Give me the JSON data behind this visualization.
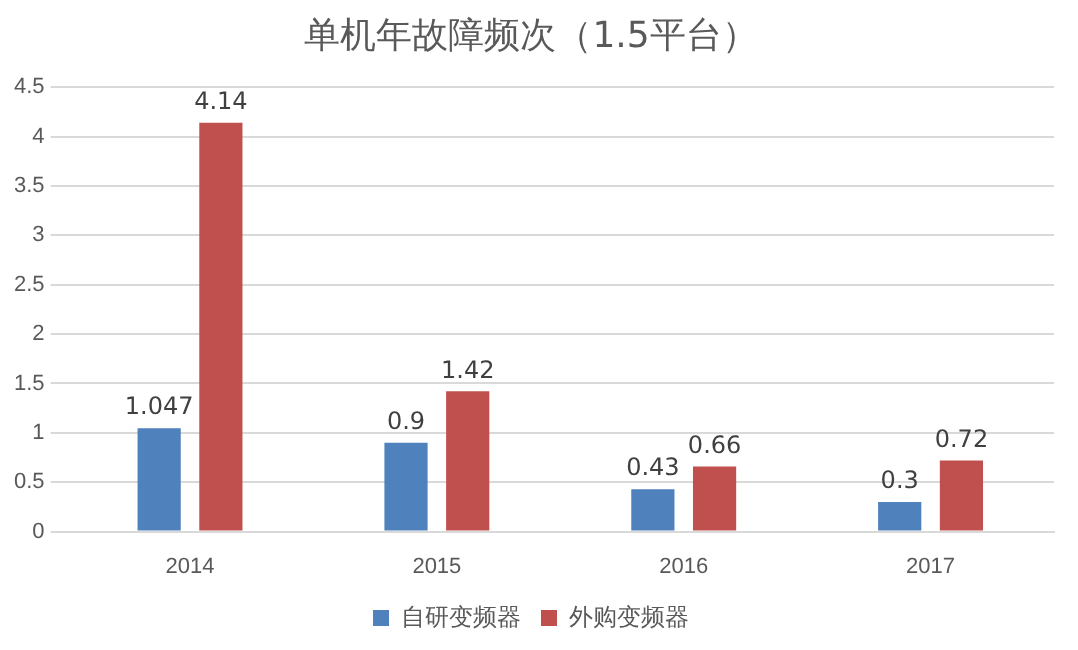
{
  "chart_data": {
    "type": "bar",
    "title": "单机年故障频次（1.5平台）",
    "categories": [
      "2014",
      "2015",
      "2016",
      "2017"
    ],
    "series": [
      {
        "name": "自研变频器",
        "color": "#4f81bd",
        "values": [
          1.047,
          0.9,
          0.43,
          0.3
        ]
      },
      {
        "name": "外购变频器",
        "color": "#c0504d",
        "values": [
          4.14,
          1.42,
          0.66,
          0.72
        ]
      }
    ],
    "ylim": [
      0,
      4.5
    ],
    "yticks": [
      0,
      0.5,
      1,
      1.5,
      2,
      2.5,
      3,
      3.5,
      4,
      4.5
    ],
    "grid": "y",
    "legend": "bottom",
    "data_labels": true
  }
}
